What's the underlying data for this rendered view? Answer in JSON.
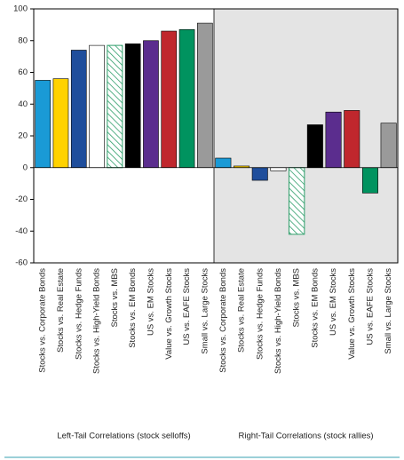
{
  "chart_data": {
    "type": "bar",
    "ylim": [
      -60,
      100
    ],
    "yticks": [
      -60,
      -40,
      -20,
      0,
      20,
      40,
      60,
      80,
      100
    ],
    "panels": [
      {
        "title": "Left-Tail Correlations (stock selloffs)",
        "background": "#ffffff",
        "categories": [
          "Stocks vs. Corporate Bonds",
          "Stocks vs. Real Estate",
          "Stocks vs. Hedge Funds",
          "Stocks vs. High-Yield Bonds",
          "Stocks vs. MBS",
          "Stocks vs. EM Bonds",
          "US vs. EM Stocks",
          "Value vs. Growth Stocks",
          "US vs. EAFE Stocks",
          "Small vs. Large Stocks"
        ],
        "values": [
          55,
          56,
          74,
          77,
          77,
          78,
          80,
          86,
          87,
          91
        ],
        "colors": [
          "#1a9ad6",
          "#ffd200",
          "#1f4e9c",
          "#ffffff",
          "#2e9e6a",
          "#000000",
          "#5b2d8e",
          "#c0272d",
          "#00935f",
          "#9a9a9a"
        ],
        "hatched": [
          false,
          false,
          false,
          false,
          true,
          false,
          false,
          false,
          false,
          false
        ]
      },
      {
        "title": "Right-Tail Correlations (stock rallies)",
        "background": "#e4e4e4",
        "categories": [
          "Stocks vs. Corporate Bonds",
          "Stocks vs. Real Estate",
          "Stocks vs. Hedge Funds",
          "Stocks vs. High-Yield Bonds",
          "Stocks vs. MBS",
          "Stocks vs. EM Bonds",
          "US vs. EM Stocks",
          "Value vs. Growth Stocks",
          "US vs. EAFE Stocks",
          "Small vs. Large Stocks"
        ],
        "values": [
          6,
          1,
          -8,
          -2,
          -42,
          27,
          35,
          36,
          -16,
          28
        ],
        "colors": [
          "#1a9ad6",
          "#ffd200",
          "#1f4e9c",
          "#ffffff",
          "#2e9e6a",
          "#000000",
          "#5b2d8e",
          "#c0272d",
          "#00935f",
          "#9a9a9a"
        ],
        "hatched": [
          false,
          false,
          false,
          false,
          true,
          false,
          false,
          false,
          false,
          false
        ]
      }
    ]
  }
}
